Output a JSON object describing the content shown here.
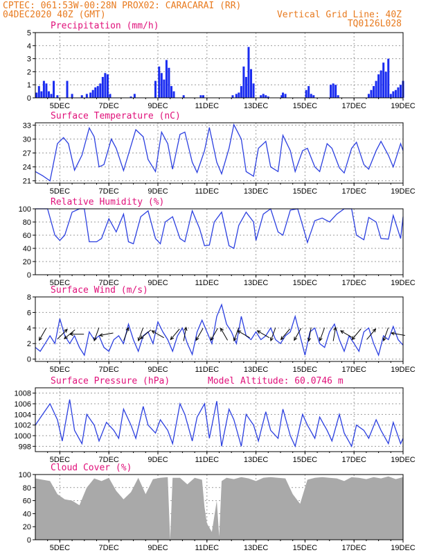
{
  "header": {
    "line1_left": "CPTEC:   061:53W-00:28N   PROX02: CARACARAI (RR)",
    "line2_left": "04DEC2020 40Z (GMT)",
    "line2_right": "Vertical Grid Line: 40Z",
    "line3_right": "TQ0126L028"
  },
  "colors": {
    "header": "#e87a1e",
    "panel_title": "#e0107a",
    "line": "#2b3fe0",
    "bars": "#1a2cf0",
    "cloud": "#a9a9a9",
    "grid": "#9a9a9a"
  },
  "x_axis": {
    "labels": [
      "5DEC",
      "7DEC",
      "9DEC",
      "11DEC",
      "13DEC",
      "15DEC",
      "17DEC",
      "19DEC"
    ],
    "days": [
      5,
      7,
      9,
      11,
      13,
      15,
      17,
      19
    ],
    "xlim": [
      4,
      19
    ]
  },
  "chart_data": [
    {
      "id": "precip",
      "type": "bar",
      "title": "Precipitation (mm/h)",
      "ylim": [
        0,
        5
      ],
      "yticks": [
        0,
        1,
        2,
        3,
        4,
        5
      ],
      "x": [
        4.05,
        4.15,
        4.25,
        4.35,
        4.45,
        4.55,
        4.65,
        4.75,
        4.9,
        5.3,
        5.5,
        5.9,
        6.1,
        6.25,
        6.35,
        6.45,
        6.55,
        6.65,
        6.75,
        6.85,
        6.95,
        7.05,
        7.9,
        8.05,
        8.9,
        9.05,
        9.15,
        9.25,
        9.35,
        9.45,
        9.55,
        9.65,
        10.05,
        10.75,
        10.85,
        12.05,
        12.2,
        12.3,
        12.4,
        12.5,
        12.6,
        12.7,
        12.8,
        12.9,
        13.2,
        13.3,
        13.4,
        13.5,
        14.05,
        14.1,
        14.2,
        15.05,
        15.15,
        15.25,
        15.35,
        16.05,
        16.15,
        16.25,
        16.35,
        17.6,
        17.7,
        17.8,
        17.9,
        18.0,
        18.1,
        18.2,
        18.3,
        18.4,
        18.5,
        18.6,
        18.7,
        18.8,
        18.9,
        19.0
      ],
      "values": [
        0.4,
        0.9,
        0.5,
        1.3,
        1.1,
        0.5,
        0.3,
        1.3,
        0.2,
        1.3,
        0.3,
        0.2,
        0.3,
        0.4,
        0.6,
        0.8,
        0.9,
        1.1,
        1.6,
        1.9,
        1.8,
        0.3,
        0.1,
        0.3,
        1.3,
        2.4,
        1.9,
        1.4,
        2.9,
        2.3,
        0.9,
        0.5,
        0.2,
        0.2,
        0.2,
        0.2,
        0.3,
        0.4,
        0.9,
        2.4,
        1.6,
        3.9,
        2.2,
        1.1,
        0.2,
        0.3,
        0.2,
        0.1,
        0.2,
        0.4,
        0.3,
        0.6,
        0.9,
        0.3,
        0.2,
        1.0,
        1.1,
        1.0,
        0.2,
        0.3,
        0.6,
        0.9,
        1.3,
        1.8,
        2.1,
        2.7,
        2.0,
        3.0,
        0.3,
        0.5,
        0.6,
        0.8,
        1.0,
        1.3
      ]
    },
    {
      "id": "temp",
      "type": "line",
      "title": "Surface Temperature (nC)",
      "ylim": [
        20.5,
        33.5
      ],
      "yticks": [
        21,
        24,
        27,
        30,
        33
      ],
      "x": [
        4.0,
        4.3,
        4.6,
        4.9,
        5.15,
        5.35,
        5.6,
        5.9,
        6.2,
        6.4,
        6.6,
        6.8,
        7.1,
        7.3,
        7.6,
        8.1,
        8.4,
        8.6,
        8.9,
        9.15,
        9.4,
        9.6,
        9.9,
        10.1,
        10.4,
        10.6,
        10.9,
        11.1,
        11.4,
        11.6,
        11.9,
        12.1,
        12.4,
        12.6,
        12.9,
        13.1,
        13.4,
        13.6,
        13.9,
        14.1,
        14.4,
        14.6,
        14.9,
        15.1,
        15.4,
        15.6,
        15.9,
        16.1,
        16.4,
        16.6,
        16.9,
        17.1,
        17.4,
        17.6,
        17.9,
        18.1,
        18.4,
        18.6,
        18.9,
        19.0
      ],
      "values": [
        23.0,
        22.1,
        21.0,
        29.0,
        30.3,
        29.0,
        23.3,
        26.5,
        32.4,
        30.5,
        24.0,
        24.5,
        30.0,
        28.0,
        23.2,
        32.0,
        30.5,
        25.6,
        23.0,
        31.5,
        29.0,
        23.5,
        31.0,
        31.5,
        25.0,
        22.8,
        27.5,
        32.5,
        25.0,
        22.5,
        28.0,
        33.1,
        30.0,
        23.0,
        22.0,
        28.0,
        29.5,
        24.0,
        23.0,
        30.8,
        27.5,
        23.0,
        27.5,
        28.0,
        24.0,
        23.0,
        29.0,
        28.0,
        23.8,
        22.7,
        28.0,
        29.3,
        24.5,
        23.5,
        27.5,
        29.5,
        26.5,
        24.0,
        29.0,
        27.5
      ]
    },
    {
      "id": "rh",
      "type": "line",
      "title": "Relative Humidity (%)",
      "ylim": [
        0,
        100
      ],
      "yticks": [
        0,
        20,
        40,
        60,
        80,
        100
      ],
      "x": [
        4.0,
        4.5,
        4.8,
        5.0,
        5.2,
        5.5,
        5.8,
        6.0,
        6.2,
        6.5,
        6.7,
        7.0,
        7.3,
        7.6,
        7.8,
        8.0,
        8.3,
        8.6,
        8.9,
        9.1,
        9.3,
        9.6,
        9.9,
        10.1,
        10.4,
        10.7,
        10.9,
        11.1,
        11.3,
        11.6,
        11.9,
        12.1,
        12.3,
        12.6,
        12.9,
        13.0,
        13.3,
        13.6,
        13.9,
        14.1,
        14.4,
        14.7,
        14.9,
        15.1,
        15.4,
        15.7,
        16.0,
        16.3,
        16.6,
        16.9,
        17.1,
        17.4,
        17.6,
        17.9,
        18.1,
        18.4,
        18.6,
        18.9,
        19.0
      ],
      "values": [
        100,
        100,
        60,
        52,
        60,
        95,
        100,
        100,
        50,
        50,
        55,
        85,
        65,
        92,
        50,
        47,
        88,
        97,
        55,
        47,
        80,
        88,
        55,
        50,
        97,
        70,
        44,
        45,
        80,
        95,
        44,
        40,
        75,
        95,
        80,
        52,
        92,
        100,
        65,
        60,
        98,
        100,
        75,
        49,
        82,
        86,
        80,
        92,
        100,
        100,
        60,
        53,
        87,
        80,
        55,
        54,
        90,
        55,
        88
      ]
    },
    {
      "id": "wind",
      "type": "line",
      "title": "Surface Wind (m/s)",
      "ylim": [
        -0.3,
        8
      ],
      "yticks": [
        0,
        2,
        4,
        6,
        8
      ],
      "x": [
        4.0,
        4.2,
        4.4,
        4.6,
        4.8,
        5.0,
        5.2,
        5.4,
        5.6,
        5.8,
        6.0,
        6.2,
        6.4,
        6.6,
        6.8,
        7.0,
        7.2,
        7.4,
        7.6,
        7.8,
        8.0,
        8.2,
        8.4,
        8.6,
        8.8,
        9.0,
        9.2,
        9.4,
        9.6,
        9.8,
        10.0,
        10.2,
        10.4,
        10.6,
        10.8,
        11.0,
        11.2,
        11.4,
        11.6,
        11.8,
        12.0,
        12.2,
        12.4,
        12.6,
        12.8,
        13.0,
        13.2,
        13.4,
        13.6,
        13.8,
        14.0,
        14.2,
        14.4,
        14.6,
        14.8,
        15.0,
        15.2,
        15.4,
        15.6,
        15.8,
        16.0,
        16.2,
        16.4,
        16.6,
        16.8,
        17.0,
        17.2,
        17.4,
        17.6,
        17.8,
        18.0,
        18.2,
        18.4,
        18.6,
        18.8,
        19.0
      ],
      "values": [
        1.5,
        1.0,
        2.0,
        3.0,
        2.0,
        5.2,
        3.0,
        2.0,
        3.0,
        1.5,
        0.5,
        3.5,
        2.5,
        3.0,
        1.5,
        1.0,
        2.5,
        3.0,
        2.0,
        4.5,
        2.5,
        1.0,
        3.0,
        3.5,
        2.0,
        4.8,
        3.5,
        2.5,
        1.0,
        3.0,
        4.0,
        2.0,
        0.6,
        3.5,
        5.0,
        3.5,
        2.0,
        5.5,
        7.0,
        4.5,
        3.5,
        2.0,
        5.5,
        3.0,
        2.5,
        3.5,
        2.5,
        3.0,
        4.0,
        2.5,
        2.0,
        3.0,
        3.5,
        5.5,
        3.0,
        0.5,
        3.5,
        4.0,
        2.0,
        1.5,
        3.5,
        4.5,
        2.5,
        1.0,
        3.0,
        2.0,
        1.0,
        3.5,
        4.0,
        2.0,
        0.5,
        3.0,
        2.5,
        4.2,
        2.5,
        1.8
      ]
    },
    {
      "id": "pressure",
      "type": "line",
      "title": "Surface Pressure (hPa)",
      "ylim": [
        997,
        1009
      ],
      "subtitle": "Model Altitude: 60.0746  m",
      "yticks": [
        998,
        1000,
        1002,
        1004,
        1006,
        1008
      ],
      "x": [
        4.0,
        4.3,
        4.6,
        4.9,
        5.1,
        5.4,
        5.6,
        5.9,
        6.1,
        6.4,
        6.6,
        6.9,
        7.2,
        7.4,
        7.6,
        7.9,
        8.1,
        8.4,
        8.6,
        8.9,
        9.1,
        9.4,
        9.6,
        9.9,
        10.1,
        10.4,
        10.6,
        10.9,
        11.1,
        11.4,
        11.6,
        11.9,
        12.1,
        12.4,
        12.6,
        12.9,
        13.1,
        13.4,
        13.6,
        13.9,
        14.1,
        14.4,
        14.6,
        14.9,
        15.1,
        15.4,
        15.6,
        15.9,
        16.1,
        16.4,
        16.6,
        16.9,
        17.1,
        17.4,
        17.6,
        17.9,
        18.1,
        18.4,
        18.6,
        18.9,
        19.0
      ],
      "values": [
        1002.0,
        1004.0,
        1006.0,
        1003.0,
        999.0,
        1006.8,
        1001.0,
        998.5,
        1004.0,
        1002.0,
        999.0,
        1002.5,
        1001.0,
        999.5,
        1005.0,
        1002.0,
        999.5,
        1005.5,
        1002.0,
        1000.5,
        1003.0,
        1001.0,
        998.5,
        1006.0,
        1004.0,
        999.0,
        1003.5,
        1006.0,
        999.5,
        1006.5,
        998.0,
        1005.0,
        1003.0,
        998.0,
        1004.0,
        1002.0,
        999.0,
        1004.5,
        1001.0,
        999.5,
        1005.0,
        1000.0,
        998.0,
        1004.0,
        1002.0,
        999.5,
        1003.5,
        1001.0,
        999.0,
        1004.0,
        1000.5,
        998.0,
        1002.0,
        1001.0,
        999.5,
        1003.0,
        1001.0,
        998.5,
        1002.5,
        998.5,
        999.5
      ]
    },
    {
      "id": "cloud",
      "type": "area",
      "title": "Cloud Cover (%)",
      "ylim": [
        0,
        100
      ],
      "yticks": [
        0,
        20,
        40,
        60,
        80,
        100
      ],
      "x": [
        4.0,
        4.3,
        4.6,
        4.9,
        5.2,
        5.5,
        5.8,
        6.1,
        6.4,
        6.7,
        7.0,
        7.3,
        7.6,
        7.9,
        8.2,
        8.5,
        8.8,
        9.1,
        9.4,
        9.5,
        9.6,
        9.9,
        10.2,
        10.5,
        10.8,
        10.9,
        11.0,
        11.2,
        11.4,
        11.5,
        11.6,
        11.8,
        12.1,
        12.4,
        12.7,
        13.0,
        13.3,
        13.6,
        13.9,
        14.2,
        14.5,
        14.8,
        15.1,
        15.4,
        15.7,
        16.0,
        16.3,
        16.6,
        16.9,
        17.2,
        17.5,
        17.8,
        18.1,
        18.4,
        18.7,
        19.0
      ],
      "values": [
        94,
        92,
        90,
        70,
        62,
        60,
        53,
        80,
        94,
        90,
        95,
        75,
        62,
        73,
        95,
        70,
        93,
        95,
        96,
        0,
        95,
        95,
        85,
        95,
        92,
        50,
        25,
        12,
        60,
        5,
        90,
        95,
        93,
        96,
        94,
        90,
        95,
        96,
        95,
        94,
        70,
        55,
        92,
        95,
        96,
        95,
        94,
        90,
        96,
        95,
        93,
        96,
        94,
        97,
        93,
        96
      ]
    }
  ],
  "wind_arrows": [
    {
      "day": 4.3,
      "dir": 210
    },
    {
      "day": 5.1,
      "dir": 45
    },
    {
      "day": 5.4,
      "dir": 230
    },
    {
      "day": 5.7,
      "dir": 270
    },
    {
      "day": 6.5,
      "dir": 200
    },
    {
      "day": 6.9,
      "dir": 260
    },
    {
      "day": 7.7,
      "dir": 20
    },
    {
      "day": 8.3,
      "dir": 200
    },
    {
      "day": 8.5,
      "dir": 230
    },
    {
      "day": 9.0,
      "dir": 300
    },
    {
      "day": 9.7,
      "dir": 220
    },
    {
      "day": 10.1,
      "dir": 10
    },
    {
      "day": 10.7,
      "dir": 210
    },
    {
      "day": 11.3,
      "dir": 210
    },
    {
      "day": 11.7,
      "dir": 330
    },
    {
      "day": 12.2,
      "dir": 200
    },
    {
      "day": 12.5,
      "dir": 300
    },
    {
      "day": 13.3,
      "dir": 300
    },
    {
      "day": 13.7,
      "dir": 200
    },
    {
      "day": 14.2,
      "dir": 220
    },
    {
      "day": 14.7,
      "dir": 210
    },
    {
      "day": 15.2,
      "dir": 190
    },
    {
      "day": 15.7,
      "dir": 200
    },
    {
      "day": 16.2,
      "dir": 10
    },
    {
      "day": 16.7,
      "dir": 300
    },
    {
      "day": 17.1,
      "dir": 220
    },
    {
      "day": 17.7,
      "dir": 40
    },
    {
      "day": 18.3,
      "dir": 200
    },
    {
      "day": 18.8,
      "dir": 280
    }
  ]
}
